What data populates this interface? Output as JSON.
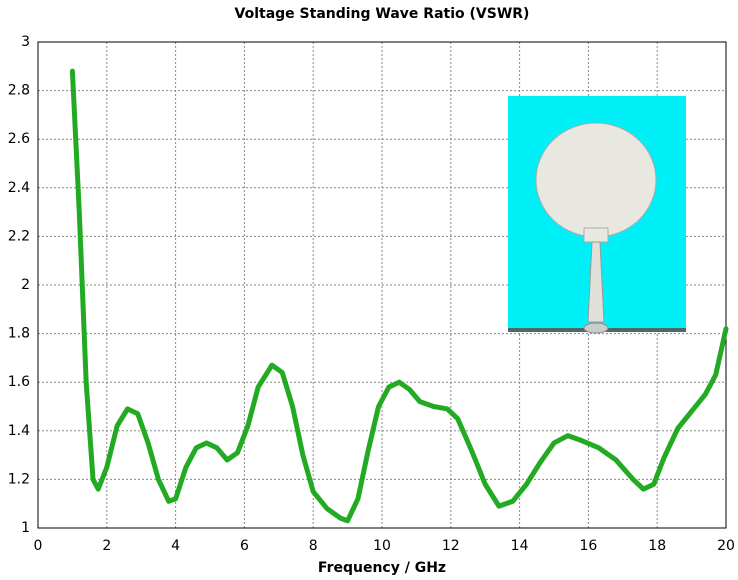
{
  "chart_data": {
    "type": "line",
    "title": "Voltage Standing Wave Ratio (VSWR)",
    "x_label": "Frequency / GHz",
    "x": [
      1,
      1.2,
      1.4,
      1.6,
      1.75,
      2.0,
      2.3,
      2.6,
      2.9,
      3.2,
      3.5,
      3.8,
      4.0,
      4.3,
      4.6,
      4.9,
      5.2,
      5.5,
      5.8,
      6.1,
      6.4,
      6.8,
      7.1,
      7.4,
      7.7,
      8.0,
      8.4,
      8.8,
      9.0,
      9.3,
      9.6,
      9.9,
      10.2,
      10.5,
      10.8,
      11.1,
      11.5,
      11.9,
      12.2,
      12.6,
      13.0,
      13.4,
      13.8,
      14.2,
      14.6,
      15.0,
      15.4,
      15.8,
      16.3,
      16.8,
      17.3,
      17.6,
      17.9,
      18.2,
      18.6,
      19.0,
      19.4,
      19.7,
      20.0
    ],
    "series": [
      {
        "color": "#22aa22",
        "values": [
          2.88,
          2.3,
          1.6,
          1.2,
          1.16,
          1.25,
          1.42,
          1.49,
          1.47,
          1.35,
          1.2,
          1.11,
          1.12,
          1.25,
          1.33,
          1.35,
          1.33,
          1.28,
          1.31,
          1.42,
          1.58,
          1.67,
          1.64,
          1.5,
          1.3,
          1.15,
          1.08,
          1.04,
          1.03,
          1.12,
          1.32,
          1.5,
          1.58,
          1.6,
          1.57,
          1.52,
          1.5,
          1.49,
          1.45,
          1.32,
          1.18,
          1.09,
          1.11,
          1.18,
          1.27,
          1.35,
          1.38,
          1.36,
          1.33,
          1.28,
          1.2,
          1.16,
          1.18,
          1.29,
          1.41,
          1.48,
          1.55,
          1.63,
          1.82
        ]
      }
    ],
    "xlim": [
      0,
      20
    ],
    "xticks": [
      0,
      2,
      4,
      6,
      8,
      10,
      12,
      14,
      16,
      18,
      20
    ],
    "ylim": [
      1,
      3
    ],
    "yticks": [
      1,
      1.2,
      1.4,
      1.6,
      1.8,
      2,
      2.2,
      2.4,
      2.6,
      2.8,
      3
    ],
    "grid": true
  }
}
